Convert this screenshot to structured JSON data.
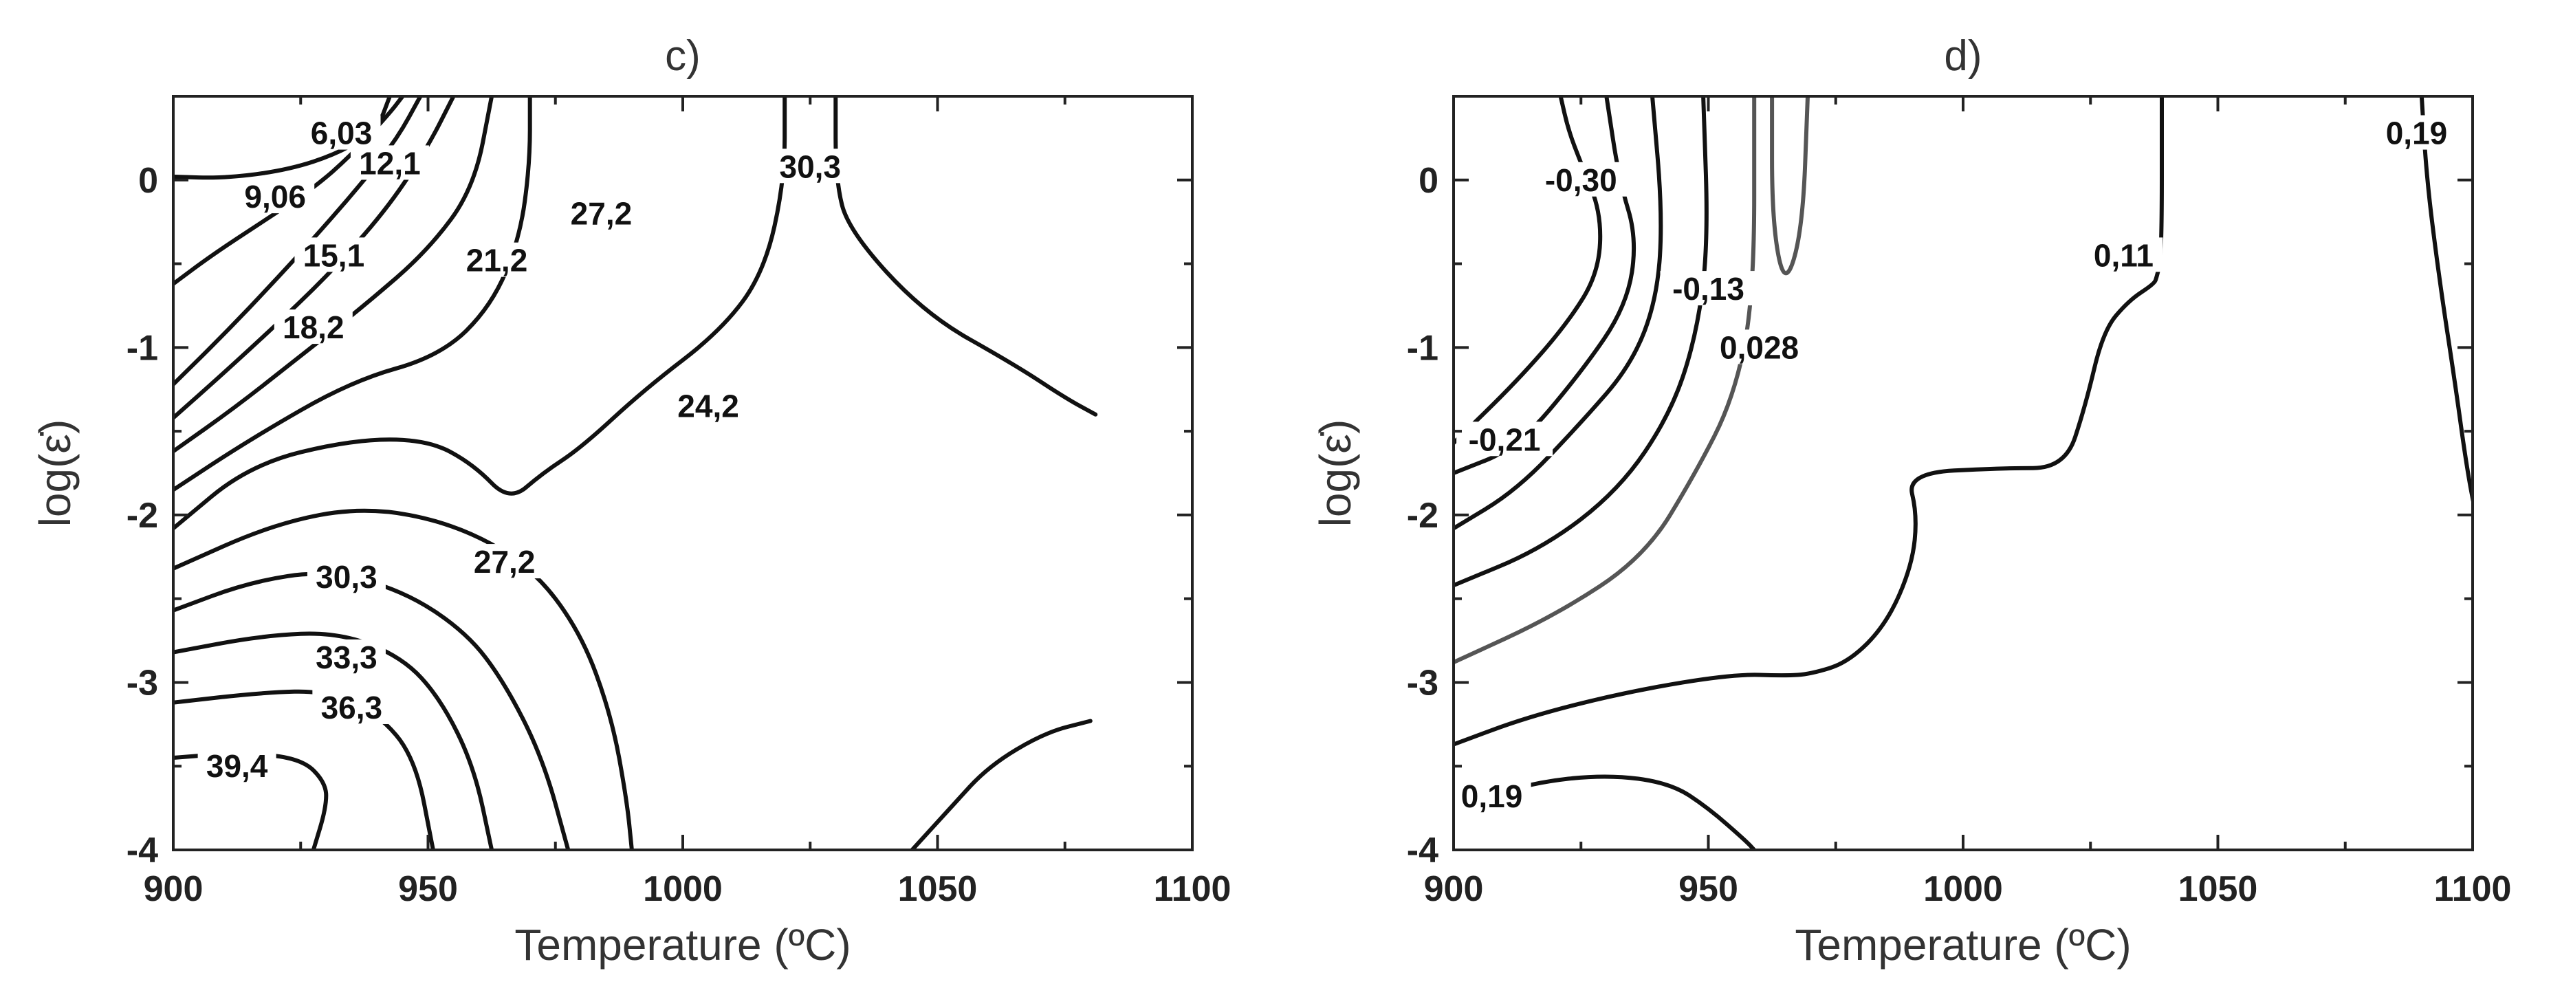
{
  "chart_data": [
    {
      "type": "contour",
      "title": "c)",
      "xlabel": "Temperature (ºC)",
      "ylabel": "log(ε̇)",
      "xlim": [
        900,
        1100
      ],
      "ylim": [
        -4,
        0.5
      ],
      "xticks": [
        "900",
        "950",
        "1000",
        "1050",
        "1100"
      ],
      "yticks": [
        "0",
        "-1",
        "-2",
        "-3",
        "-4"
      ],
      "grid": false,
      "colors": {
        "contour": "#111111"
      },
      "contours": [
        {
          "level": "6,03",
          "points": [
            [
              900,
              0.02
            ],
            [
              920,
              0.01
            ],
            [
              945,
              0.06
            ],
            [
              965,
              0.16
            ],
            [
              980,
              0.3
            ],
            [
              985,
              0.5
            ]
          ],
          "label": {
            "x": 966,
            "y": 0.28
          }
        },
        {
          "level": "9,06",
          "points": [
            [
              900,
              -0.62
            ],
            [
              915,
              -0.45
            ],
            [
              935,
              -0.25
            ],
            [
              955,
              -0.05
            ],
            [
              970,
              0.15
            ],
            [
              985,
              0.4
            ],
            [
              990,
              0.5
            ]
          ],
          "label": {
            "x": 940,
            "y": -0.1
          }
        },
        {
          "level": "12,1",
          "points": [
            [
              900,
              -1.22
            ],
            [
              920,
              -0.92
            ],
            [
              940,
              -0.6
            ],
            [
              958,
              -0.3
            ],
            [
              975,
              0.0
            ],
            [
              988,
              0.25
            ],
            [
              997,
              0.5
            ]
          ],
          "label": {
            "x": 985,
            "y": 0.1
          }
        },
        {
          "level": "15,1",
          "points": [
            [
              900,
              -1.42
            ],
            [
              920,
              -1.15
            ],
            [
              945,
              -0.8
            ],
            [
              965,
              -0.5
            ],
            [
              985,
              -0.15
            ],
            [
              1000,
              0.2
            ],
            [
              1010,
              0.5
            ]
          ],
          "label": {
            "x": 963,
            "y": -0.45
          }
        },
        {
          "level": "18,2",
          "points": [
            [
              900,
              -1.62
            ],
            [
              925,
              -1.35
            ],
            [
              950,
              -1.05
            ],
            [
              975,
              -0.75
            ],
            [
              1000,
              -0.42
            ],
            [
              1018,
              -0.05
            ],
            [
              1025,
              0.5
            ]
          ],
          "label": {
            "x": 955,
            "y": -0.88
          }
        },
        {
          "level": "21,2",
          "points": [
            [
              900,
              -1.85
            ],
            [
              930,
              -1.55
            ],
            [
              970,
              -1.2
            ],
            [
              1005,
              -1.05
            ],
            [
              1025,
              -0.75
            ],
            [
              1036,
              -0.35
            ],
            [
              1040,
              0.1
            ],
            [
              1040,
              0.5
            ]
          ],
          "label": {
            "x": 1027,
            "y": -0.48
          }
        },
        {
          "level": "24,2",
          "points": [
            [
              900,
              -2.08
            ],
            [
              930,
              -1.7
            ],
            [
              970,
              -1.55
            ],
            [
              1000,
              -1.55
            ],
            [
              1018,
              -1.7
            ],
            [
              1032,
              -1.92
            ],
            [
              1045,
              -1.75
            ],
            [
              1060,
              -1.6
            ],
            [
              1085,
              -1.25
            ],
            [
              1115,
              -0.9
            ],
            [
              1132,
              -0.55
            ],
            [
              1140,
              0.0
            ],
            [
              1140,
              0.5
            ]
          ],
          "label": {
            "x": 1110,
            "y": -1.35
          }
        },
        {
          "level": "27,2",
          "points": [
            [
              900,
              -2.32
            ],
            [
              940,
              -2.05
            ],
            [
              975,
              -1.95
            ],
            [
              1010,
              -2.05
            ],
            [
              1040,
              -2.3
            ],
            [
              1060,
              -2.7
            ],
            [
              1072,
              -3.2
            ],
            [
              1078,
              -3.7
            ],
            [
              1080,
              -4.0
            ]
          ],
          "label": {
            "x": 1030,
            "y": -2.28
          }
        },
        {
          "level": "30,3",
          "points": [
            [
              900,
              -2.57
            ],
            [
              930,
              -2.4
            ],
            [
              960,
              -2.33
            ],
            [
              990,
              -2.45
            ],
            [
              1015,
              -2.7
            ],
            [
              1030,
              -3.0
            ],
            [
              1045,
              -3.45
            ],
            [
              1055,
              -4.0
            ]
          ],
          "label": {
            "x": 968,
            "y": -2.37
          }
        },
        {
          "level": "33,3",
          "points": [
            [
              900,
              -2.82
            ],
            [
              935,
              -2.72
            ],
            [
              965,
              -2.7
            ],
            [
              990,
              -2.85
            ],
            [
              1005,
              -3.1
            ],
            [
              1018,
              -3.5
            ],
            [
              1025,
              -4.0
            ]
          ],
          "label": {
            "x": 968,
            "y": -2.85
          }
        },
        {
          "level": "36,3",
          "points": [
            [
              900,
              -3.12
            ],
            [
              935,
              -3.06
            ],
            [
              960,
              -3.05
            ],
            [
              980,
              -3.18
            ],
            [
              995,
              -3.45
            ],
            [
              1002,
              -4.0
            ]
          ],
          "label": {
            "x": 970,
            "y": -3.15
          }
        },
        {
          "level": "39,4",
          "points": [
            [
              900,
              -3.45
            ],
            [
              925,
              -3.42
            ],
            [
              950,
              -3.45
            ],
            [
              960,
              -3.6
            ],
            [
              960,
              -3.75
            ],
            [
              955,
              -4.0
            ]
          ],
          "label": {
            "x": 925,
            "y": -3.5
          }
        },
        {
          "level": "",
          "points": [
            [
              1190,
              -4.0
            ],
            [
              1205,
              -3.75
            ],
            [
              1220,
              -3.5
            ],
            [
              1242,
              -3.3
            ],
            [
              1260,
              -3.23
            ]
          ],
          "label": null
        },
        {
          "level": "",
          "points": [
            [
              1160,
              0.5
            ],
            [
              1160,
              0.0
            ],
            [
              1165,
              -0.3
            ],
            [
              1195,
              -0.8
            ],
            [
              1230,
              -1.1
            ],
            [
              1250,
              -1.3
            ],
            [
              1262,
              -1.4
            ]
          ],
          "label": null
        }
      ],
      "extra_labels": [
        {
          "text": "27,2",
          "x": 1068,
          "y": -0.2
        },
        {
          "text": "30,3",
          "x": 1150,
          "y": 0.08
        }
      ]
    },
    {
      "type": "contour",
      "title": "d)",
      "xlabel": "Temperature (ºC)",
      "ylabel": "log(ε̇)",
      "xlim": [
        900,
        1100
      ],
      "ylim": [
        -4,
        0.5
      ],
      "xticks": [
        "900",
        "950",
        "1000",
        "1050",
        "1100"
      ],
      "yticks": [
        "0",
        "-1",
        "-2",
        "-3",
        "-4"
      ],
      "grid": false,
      "colors": {
        "contour": "#111111",
        "contour_grey": "#555555"
      },
      "contours": [
        {
          "level": "-0,30",
          "points": [
            [
              900,
              -1.57
            ],
            [
              925,
              -1.2
            ],
            [
              945,
              -0.85
            ],
            [
              957,
              -0.55
            ],
            [
              958,
              -0.2
            ],
            [
              950,
              0.1
            ],
            [
              945,
              0.3
            ],
            [
              942,
              0.5
            ]
          ],
          "label": {
            "x": 950,
            "y": 0.0
          }
        },
        {
          "level": "-0,21",
          "points": [
            [
              900,
              -1.75
            ],
            [
              925,
              -1.6
            ],
            [
              950,
              -1.15
            ],
            [
              968,
              -0.75
            ],
            [
              972,
              -0.35
            ],
            [
              965,
              0.0
            ],
            [
              960,
              0.5
            ]
          ],
          "label": {
            "x": 920,
            "y": -1.55
          }
        },
        {
          "level": "",
          "points": [
            [
              900,
              -2.08
            ],
            [
              925,
              -1.85
            ],
            [
              950,
              -1.45
            ],
            [
              970,
              -1.1
            ],
            [
              980,
              -0.7
            ],
            [
              982,
              -0.2
            ],
            [
              978,
              0.5
            ]
          ],
          "label": null
        },
        {
          "level": "-0,13",
          "points": [
            [
              900,
              -2.42
            ],
            [
              935,
              -2.2
            ],
            [
              965,
              -1.85
            ],
            [
              985,
              -1.4
            ],
            [
              995,
              -0.95
            ],
            [
              1000,
              -0.4
            ],
            [
              998,
              0.5
            ]
          ],
          "label": {
            "x": 1000,
            "y": -0.65
          }
        },
        {
          "level": "0,028",
          "grey": true,
          "points": [
            [
              900,
              -2.88
            ],
            [
              940,
              -2.6
            ],
            [
              975,
              -2.25
            ],
            [
              995,
              -1.75
            ],
            [
              1010,
              -1.3
            ],
            [
              1018,
              -0.7
            ],
            [
              1018,
              0.5
            ]
          ],
          "label": {
            "x": 1020,
            "y": -1.0
          }
        },
        {
          "level": "",
          "grey": true,
          "points": [
            [
              1025,
              0.5
            ],
            [
              1025,
              -0.25
            ],
            [
              1030,
              -0.65
            ],
            [
              1037,
              -0.3
            ],
            [
              1039,
              0.5
            ]
          ],
          "label": null
        },
        {
          "level": "0,11",
          "points": [
            [
              900,
              -3.37
            ],
            [
              930,
              -3.2
            ],
            [
              970,
              -3.05
            ],
            [
              1010,
              -2.95
            ],
            [
              1030,
              -2.96
            ],
            [
              1040,
              -2.95
            ],
            [
              1055,
              -2.88
            ],
            [
              1070,
              -2.65
            ],
            [
              1080,
              -2.3
            ],
            [
              1082,
              -2.0
            ],
            [
              1078,
              -1.75
            ],
            [
              1115,
              -1.72
            ],
            [
              1140,
              -1.72
            ],
            [
              1148,
              -1.35
            ],
            [
              1155,
              -0.9
            ],
            [
              1165,
              -0.72
            ],
            [
              1175,
              -0.62
            ],
            [
              1176,
              -0.58
            ],
            [
              1178,
              -0.45
            ],
            [
              1178,
              0.5
            ]
          ],
          "label": {
            "x": 1163,
            "y": -0.45
          }
        },
        {
          "level": "0,19",
          "points": [
            [
              900,
              -3.75
            ],
            [
              930,
              -3.6
            ],
            [
              960,
              -3.55
            ],
            [
              985,
              -3.6
            ],
            [
              1000,
              -3.75
            ],
            [
              1015,
              -3.95
            ],
            [
              1018,
              -4.0
            ]
          ],
          "label": {
            "x": 915,
            "y": -3.68
          }
        },
        {
          "level": "0,19",
          "points": [
            [
              1280,
              0.5
            ],
            [
              1282,
              0.0
            ],
            [
              1287,
              -0.6
            ],
            [
              1293,
              -1.2
            ],
            [
              1298,
              -1.75
            ],
            [
              1302,
              -2.05
            ]
          ],
          "label": {
            "x": 1278,
            "y": 0.28
          }
        }
      ],
      "extra_labels": []
    }
  ]
}
